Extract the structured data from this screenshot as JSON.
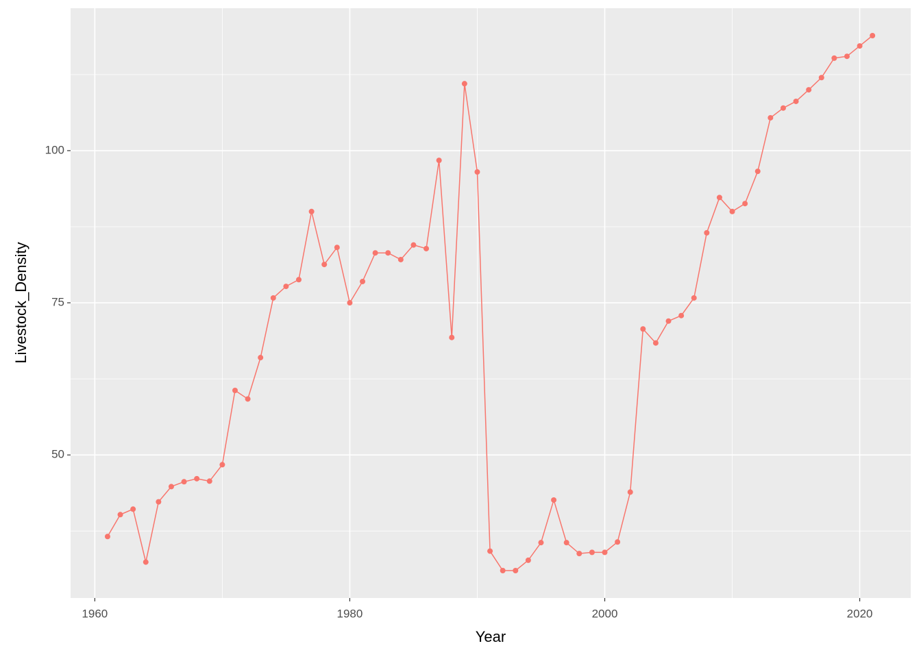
{
  "chart_data": {
    "type": "line",
    "x_label": "Year",
    "y_label": "Livestock_Density",
    "x": [
      1961,
      1962,
      1963,
      1964,
      1965,
      1966,
      1967,
      1968,
      1969,
      1970,
      1971,
      1972,
      1973,
      1974,
      1975,
      1976,
      1977,
      1978,
      1979,
      1980,
      1981,
      1982,
      1983,
      1984,
      1985,
      1986,
      1987,
      1988,
      1989,
      1990,
      1991,
      1992,
      1993,
      1994,
      1995,
      1996,
      1997,
      1998,
      1999,
      2000,
      2001,
      2002,
      2003,
      2004,
      2005,
      2006,
      2007,
      2008,
      2009,
      2010,
      2011,
      2012,
      2013,
      2014,
      2015,
      2016,
      2017,
      2018,
      2019,
      2020,
      2021
    ],
    "series": [
      {
        "color": "#F8766D",
        "values": [
          36.6,
          40.2,
          41.1,
          32.4,
          42.3,
          44.8,
          45.6,
          46.1,
          45.7,
          48.4,
          60.6,
          59.2,
          66.0,
          75.8,
          77.7,
          78.8,
          90.0,
          81.3,
          84.1,
          75.0,
          78.5,
          83.2,
          83.2,
          82.1,
          84.5,
          83.9,
          98.4,
          69.3,
          111.0,
          96.5,
          34.2,
          31.0,
          31.0,
          32.7,
          35.6,
          42.6,
          35.6,
          33.8,
          34.0,
          34.0,
          35.7,
          43.9,
          70.7,
          68.4,
          72.0,
          72.9,
          75.8,
          86.5,
          92.3,
          90.0,
          91.3,
          96.6,
          105.4,
          107.0,
          108.1,
          110.0,
          112.0,
          115.2,
          115.5,
          117.2,
          118.9
        ]
      }
    ],
    "xlim": [
      1958.1,
      2024.0
    ],
    "ylim": [
      26.5,
      123.4
    ],
    "xticks": [
      1960,
      1980,
      2000,
      2020
    ],
    "yticks": [
      50,
      75,
      100
    ],
    "x_minor_grid": [
      1970,
      1990,
      2010
    ],
    "y_minor_grid": [
      37.5,
      62.5,
      87.5,
      112.5
    ],
    "grid": true,
    "panel_color": "#EBEBEB"
  }
}
